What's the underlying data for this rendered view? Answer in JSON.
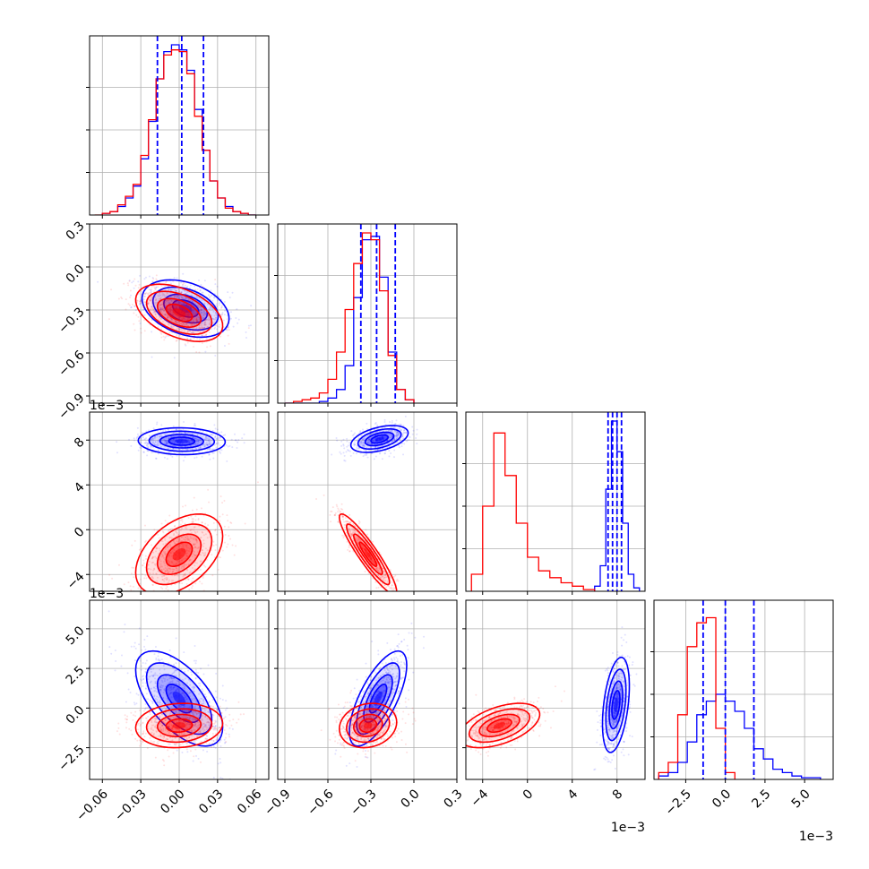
{
  "chart_data": {
    "type": "corner",
    "colors": {
      "blue": "#0000ff",
      "red": "#ff0000",
      "grid": "#b0b0b0",
      "frame": "#000000"
    },
    "grid": true,
    "legend": "none",
    "params": [
      {
        "range": [
          -0.07,
          0.07
        ],
        "ticks": [
          -0.06,
          -0.03,
          0.0,
          0.03,
          0.06
        ],
        "tick_labels": [
          "−0.06",
          "−0.03",
          "0.00",
          "0.03",
          "0.06"
        ],
        "scale_label": "",
        "mean": 0,
        "sd": 0.017
      },
      {
        "range": [
          -0.95,
          0.3
        ],
        "ticks": [
          -0.9,
          -0.6,
          -0.3,
          0.0,
          0.3
        ],
        "tick_labels": [
          "−0.9",
          "−0.6",
          "−0.3",
          "0.0",
          "0.3"
        ],
        "scale_label": "",
        "mean": -0.26,
        "sd": 0.13
      },
      {
        "range": [
          -0.0055,
          0.0105
        ],
        "ticks": [
          -0.004,
          0.0,
          0.004,
          0.008
        ],
        "tick_labels": [
          "−4",
          "0",
          "4",
          "8"
        ],
        "scale_label": "1e−3",
        "mean": 0.008,
        "sd": 0.0007
      },
      {
        "range": [
          -0.0045,
          0.0068
        ],
        "ticks": [
          -0.0025,
          0.0,
          0.0025,
          0.005
        ],
        "tick_labels": [
          "−2.5",
          "0.0",
          "2.5",
          "5.0"
        ],
        "scale_label": "1e−3",
        "mean": 0.0,
        "sd": 0.0015
      }
    ],
    "diag_quantiles": [
      [
        -0.017,
        0.002,
        0.019
      ],
      [
        -0.37,
        -0.26,
        -0.13
      ],
      [
        0.0072,
        0.0076,
        0.008,
        0.0084
      ],
      [
        -0.0014,
        0.0,
        0.0018
      ]
    ],
    "series": [
      {
        "color": "#0000ff",
        "hists": [
          {
            "edges": [
              -0.06,
              -0.054,
              -0.048,
              -0.042,
              -0.036,
              -0.03,
              -0.024,
              -0.018,
              -0.012,
              -0.006,
              0.0,
              0.006,
              0.012,
              0.018,
              0.024,
              0.03,
              0.036,
              0.042,
              0.048,
              0.054,
              0.06
            ],
            "counts": [
              0.01,
              0.02,
              0.05,
              0.1,
              0.17,
              0.33,
              0.55,
              0.8,
              0.96,
              1.0,
              0.97,
              0.85,
              0.62,
              0.38,
              0.2,
              0.1,
              0.05,
              0.02,
              0.01,
              0.0
            ]
          },
          {
            "edges": [
              -0.9,
              -0.84,
              -0.78,
              -0.72,
              -0.66,
              -0.6,
              -0.54,
              -0.48,
              -0.42,
              -0.36,
              -0.3,
              -0.24,
              -0.18,
              -0.12,
              -0.06,
              0.0
            ],
            "counts": [
              0.0,
              0.0,
              0.0,
              0.0,
              0.01,
              0.03,
              0.08,
              0.22,
              0.62,
              0.96,
              0.98,
              0.74,
              0.3,
              0.08,
              0.02
            ]
          },
          {
            "edges": [
              0.006,
              0.0065,
              0.007,
              0.0075,
              0.008,
              0.0085,
              0.009,
              0.0095,
              0.01
            ],
            "counts": [
              0.03,
              0.15,
              0.6,
              1.0,
              0.82,
              0.4,
              0.1,
              0.02
            ]
          },
          {
            "edges": [
              -0.0042,
              -0.0036,
              -0.003,
              -0.0024,
              -0.0018,
              -0.0012,
              -0.0006,
              0.0,
              0.0006,
              0.0012,
              0.0018,
              0.0024,
              0.003,
              0.0036,
              0.0042,
              0.0048,
              0.0054,
              0.006
            ],
            "counts": [
              0.02,
              0.04,
              0.1,
              0.22,
              0.38,
              0.46,
              0.5,
              0.46,
              0.4,
              0.3,
              0.18,
              0.12,
              0.06,
              0.04,
              0.02,
              0.01,
              0.01
            ]
          }
        ],
        "pairs": [
          {
            "i": 1,
            "j": 0,
            "mean": [
              0.005,
              -0.29
            ],
            "sd": [
              0.017,
              0.1
            ],
            "rho": -0.35
          },
          {
            "i": 2,
            "j": 0,
            "mean": [
              0.002,
              0.0079
            ],
            "sd": [
              0.017,
              0.0006
            ],
            "rho": -0.05
          },
          {
            "i": 2,
            "j": 1,
            "mean": [
              -0.24,
              0.0081
            ],
            "sd": [
              0.1,
              0.0006
            ],
            "rho": 0.45
          },
          {
            "i": 3,
            "j": 0,
            "mean": [
              0.0,
              0.0006
            ],
            "sd": [
              0.017,
              0.0015
            ],
            "rho": -0.6
          },
          {
            "i": 3,
            "j": 1,
            "mean": [
              -0.25,
              0.0006
            ],
            "sd": [
              0.1,
              0.0015
            ],
            "rho": 0.7
          },
          {
            "i": 3,
            "j": 2,
            "mean": [
              0.0079,
              0.0002
            ],
            "sd": [
              0.0006,
              0.0015
            ],
            "rho": 0.4
          }
        ]
      },
      {
        "color": "#ff0000",
        "hists": [
          {
            "edges": [
              -0.066,
              -0.06,
              -0.054,
              -0.048,
              -0.042,
              -0.036,
              -0.03,
              -0.024,
              -0.018,
              -0.012,
              -0.006,
              0.0,
              0.006,
              0.012,
              0.018,
              0.024,
              0.03,
              0.036,
              0.042,
              0.048,
              0.054,
              0.06
            ],
            "counts": [
              0.0,
              0.01,
              0.02,
              0.06,
              0.11,
              0.18,
              0.35,
              0.56,
              0.8,
              0.94,
              0.97,
              0.96,
              0.83,
              0.58,
              0.38,
              0.2,
              0.1,
              0.04,
              0.02,
              0.01,
              0.0
            ]
          },
          {
            "edges": [
              -0.9,
              -0.84,
              -0.78,
              -0.72,
              -0.66,
              -0.6,
              -0.54,
              -0.48,
              -0.42,
              -0.36,
              -0.3,
              -0.24,
              -0.18,
              -0.12,
              -0.06,
              0.0
            ],
            "counts": [
              0.0,
              0.01,
              0.02,
              0.03,
              0.06,
              0.14,
              0.3,
              0.55,
              0.82,
              1.0,
              0.96,
              0.66,
              0.28,
              0.08,
              0.02
            ]
          },
          {
            "edges": [
              -0.005,
              -0.004,
              -0.003,
              -0.002,
              -0.001,
              0.0,
              0.001,
              0.002,
              0.003,
              0.004,
              0.005,
              0.006
            ],
            "counts": [
              0.1,
              0.5,
              0.93,
              0.68,
              0.4,
              0.2,
              0.12,
              0.08,
              0.05,
              0.03,
              0.01
            ]
          },
          {
            "edges": [
              -0.0042,
              -0.0036,
              -0.003,
              -0.0024,
              -0.0018,
              -0.0012,
              -0.0006,
              0.0,
              0.0006
            ],
            "counts": [
              0.04,
              0.1,
              0.38,
              0.78,
              0.92,
              0.95,
              0.3,
              0.04
            ]
          }
        ],
        "pairs": [
          {
            "i": 1,
            "j": 0,
            "mean": [
              0.0,
              -0.32
            ],
            "sd": [
              0.017,
              0.1
            ],
            "rho": -0.45
          },
          {
            "i": 2,
            "j": 0,
            "mean": [
              0.0,
              -0.0022
            ],
            "sd": [
              0.017,
              0.0018
            ],
            "rho": 0.45
          },
          {
            "i": 2,
            "j": 1,
            "mean": [
              -0.32,
              -0.0022
            ],
            "sd": [
              0.1,
              0.0018
            ],
            "rho": -0.92
          },
          {
            "i": 3,
            "j": 0,
            "mean": [
              0.0,
              -0.0011
            ],
            "sd": [
              0.017,
              0.0007
            ],
            "rho": 0.1
          },
          {
            "i": 3,
            "j": 1,
            "mean": [
              -0.32,
              -0.0011
            ],
            "sd": [
              0.1,
              0.0007
            ],
            "rho": 0.15
          },
          {
            "i": 3,
            "j": 2,
            "mean": [
              -0.0025,
              -0.0011
            ],
            "sd": [
              0.0018,
              0.0007
            ],
            "rho": 0.5
          }
        ]
      }
    ]
  }
}
